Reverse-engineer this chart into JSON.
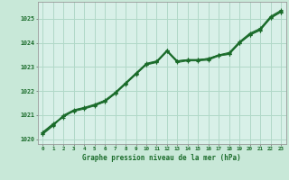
{
  "background_color": "#c8e8d8",
  "plot_bg_color": "#d8f0e8",
  "grid_color": "#b0d8c8",
  "line_color": "#1a6b2a",
  "xlabel": "Graphe pression niveau de la mer (hPa)",
  "xlim": [
    -0.5,
    23.5
  ],
  "ylim": [
    1019.8,
    1025.7
  ],
  "yticks": [
    1020,
    1021,
    1022,
    1023,
    1024,
    1025
  ],
  "xticks": [
    0,
    1,
    2,
    3,
    4,
    5,
    6,
    7,
    8,
    9,
    10,
    11,
    12,
    13,
    14,
    15,
    16,
    17,
    18,
    19,
    20,
    21,
    22,
    23
  ],
  "series": [
    [
      1020.3,
      1020.65,
      1020.9,
      1021.2,
      1021.3,
      1021.4,
      1021.55,
      1021.9,
      1022.3,
      1022.7,
      1023.1,
      1023.2,
      1023.65,
      1023.25,
      1023.3,
      1023.3,
      1023.35,
      1023.5,
      1023.55,
      1024.0,
      1024.35,
      1024.55,
      1025.05,
      1025.3
    ],
    [
      1020.28,
      1020.62,
      1020.95,
      1021.18,
      1021.28,
      1021.42,
      1021.58,
      1021.92,
      1022.32,
      1022.72,
      1023.12,
      1023.22,
      1023.67,
      1023.22,
      1023.28,
      1023.28,
      1023.32,
      1023.48,
      1023.52,
      1023.98,
      1024.32,
      1024.52,
      1025.02,
      1025.27
    ],
    [
      1020.25,
      1020.6,
      1021.0,
      1021.22,
      1021.32,
      1021.45,
      1021.62,
      1021.95,
      1022.35,
      1022.75,
      1023.15,
      1023.25,
      1023.7,
      1023.25,
      1023.3,
      1023.3,
      1023.35,
      1023.5,
      1023.6,
      1024.05,
      1024.4,
      1024.6,
      1025.1,
      1025.35
    ],
    [
      1020.22,
      1020.57,
      1020.97,
      1021.19,
      1021.29,
      1021.42,
      1021.58,
      1021.92,
      1022.32,
      1022.72,
      1023.12,
      1023.22,
      1023.67,
      1023.22,
      1023.28,
      1023.28,
      1023.32,
      1023.47,
      1023.57,
      1024.02,
      1024.37,
      1024.57,
      1025.07,
      1025.32
    ],
    [
      1020.2,
      1020.55,
      1020.95,
      1021.15,
      1021.25,
      1021.38,
      1021.55,
      1021.88,
      1022.28,
      1022.68,
      1023.08,
      1023.18,
      1023.63,
      1023.18,
      1023.25,
      1023.25,
      1023.28,
      1023.45,
      1023.52,
      1023.98,
      1024.32,
      1024.52,
      1025.02,
      1025.27
    ]
  ]
}
